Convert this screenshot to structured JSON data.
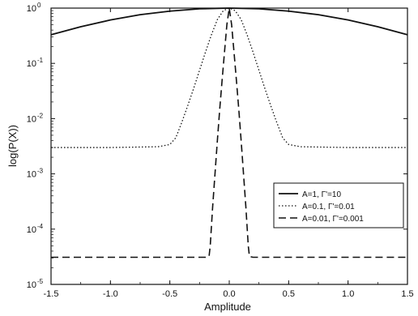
{
  "chart_data": {
    "type": "line",
    "title": "",
    "xlabel": "Amplitude",
    "ylabel": "log(P(X))",
    "xlim": [
      -1.5,
      1.5
    ],
    "ylim": [
      1e-05,
      1
    ],
    "yscale": "log",
    "grid": false,
    "legend_position": "bottom-right",
    "x_ticks": [
      -1.5,
      -1.0,
      -0.5,
      0.0,
      0.5,
      1.0,
      1.5
    ],
    "x_tick_labels": [
      "-1.5",
      "-1.0",
      "-0.5",
      "0.0",
      "0.5",
      "1.0",
      "1.5"
    ],
    "y_ticks": [
      1e-05,
      0.0001,
      0.001,
      0.01,
      0.1,
      1
    ],
    "y_tick_labels": [
      {
        "base": "10",
        "exp": "-5"
      },
      {
        "base": "10",
        "exp": "-4"
      },
      {
        "base": "10",
        "exp": "-3"
      },
      {
        "base": "10",
        "exp": "-2"
      },
      {
        "base": "10",
        "exp": "-1"
      },
      {
        "base": "10",
        "exp": "0"
      }
    ],
    "series": [
      {
        "name": "A=1, Γ'=10",
        "style": "solid",
        "color": "#111111",
        "x": [
          -1.5,
          -1.25,
          -1.0,
          -0.75,
          -0.5,
          -0.25,
          0.0,
          0.25,
          0.5,
          0.75,
          1.0,
          1.25,
          1.5
        ],
        "y": [
          0.33,
          0.46,
          0.61,
          0.76,
          0.88,
          0.97,
          1.0,
          0.97,
          0.88,
          0.76,
          0.61,
          0.46,
          0.33
        ]
      },
      {
        "name": "A=0.1, Γ'=0.01",
        "style": "dotted",
        "color": "#111111",
        "x": [
          -1.5,
          -1.0,
          -0.6,
          -0.5,
          -0.45,
          -0.4,
          -0.35,
          -0.3,
          -0.25,
          -0.2,
          -0.15,
          -0.1,
          -0.05,
          0.0,
          0.05,
          0.1,
          0.15,
          0.2,
          0.25,
          0.3,
          0.35,
          0.4,
          0.45,
          0.5,
          0.6,
          1.0,
          1.5
        ],
        "y": [
          0.003,
          0.003,
          0.0031,
          0.0034,
          0.0045,
          0.0085,
          0.017,
          0.035,
          0.075,
          0.16,
          0.33,
          0.62,
          0.9,
          1.0,
          0.9,
          0.62,
          0.33,
          0.16,
          0.075,
          0.035,
          0.017,
          0.0085,
          0.0045,
          0.0034,
          0.0031,
          0.003,
          0.003
        ]
      },
      {
        "name": "A=0.01, Γ'=0.001",
        "style": "dashed",
        "color": "#111111",
        "x": [
          -1.5,
          -0.5,
          -0.2,
          -0.17,
          -0.16,
          -0.14,
          -0.12,
          -0.1,
          -0.08,
          -0.06,
          -0.04,
          -0.02,
          0.0,
          0.02,
          0.04,
          0.06,
          0.08,
          0.1,
          0.12,
          0.14,
          0.16,
          0.17,
          0.2,
          0.5,
          1.5
        ],
        "y": [
          3.1e-05,
          3.1e-05,
          3.1e-05,
          3.2e-05,
          5e-05,
          0.00025,
          0.001,
          0.004,
          0.015,
          0.05,
          0.16,
          0.5,
          1.0,
          0.5,
          0.16,
          0.05,
          0.015,
          0.004,
          0.001,
          0.00025,
          5e-05,
          3.2e-05,
          3.1e-05,
          3.1e-05,
          3.1e-05
        ]
      }
    ]
  }
}
